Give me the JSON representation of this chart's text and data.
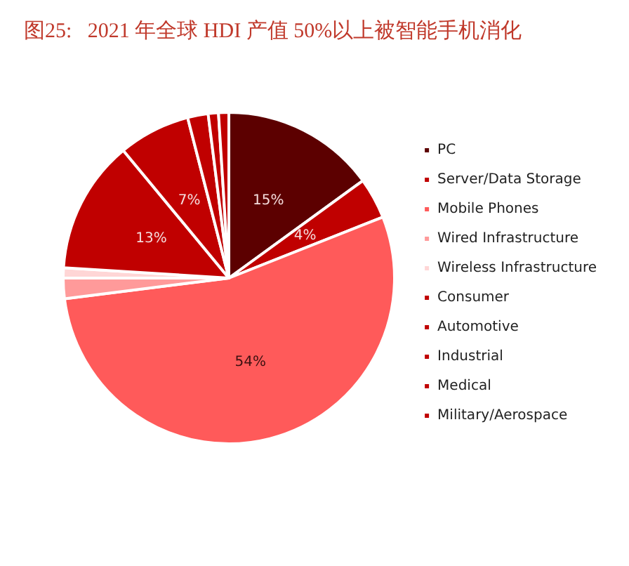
{
  "chart_data": {
    "type": "pie",
    "title": "图25:   2021 年全球 HDI 产值 50%以上被智能手机消化",
    "categories": [
      "PC",
      "Server/Data Storage",
      "Mobile Phones",
      "Wired Infrastructure",
      "Wireless Infrastructure",
      "Consumer",
      "Automotive",
      "Industrial",
      "Medical",
      "Military/Aerospace"
    ],
    "values": [
      15,
      4,
      54,
      2,
      1,
      13,
      7,
      2,
      1,
      1
    ],
    "value_labels": [
      "15%",
      "4%",
      "54%",
      null,
      null,
      "13%",
      "7%",
      null,
      null,
      null
    ],
    "colors": [
      "#5c0000",
      "#c00000",
      "#ff5a5a",
      "#ff9a9a",
      "#ffd6d6",
      "#c00000",
      "#c00000",
      "#c00000",
      "#c00000",
      "#c00000"
    ],
    "legend": "right"
  }
}
